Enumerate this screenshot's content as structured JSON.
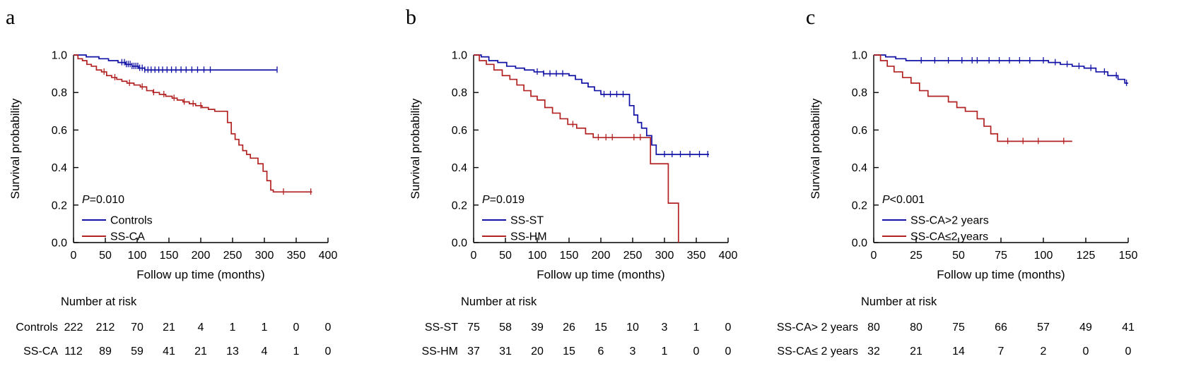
{
  "chart_data": [
    {
      "type": "line",
      "subtype": "kaplan-meier",
      "panel_label": "a",
      "p_label": "P=0.010",
      "xlabel": "Follow up time (months)",
      "ylabel": "Survival probability",
      "xlim": [
        0,
        400
      ],
      "xticks": [
        0,
        50,
        100,
        150,
        200,
        250,
        300,
        350,
        400
      ],
      "ylim": [
        0,
        1
      ],
      "yticks": [
        0.0,
        0.2,
        0.4,
        0.6,
        0.8,
        1.0
      ],
      "grid": false,
      "legend_position": "lower-left-inside",
      "series": [
        {
          "name": "Controls",
          "color": "#1111a5",
          "steps": [
            [
              0,
              1.0
            ],
            [
              20,
              0.99
            ],
            [
              40,
              0.98
            ],
            [
              55,
              0.97
            ],
            [
              70,
              0.96
            ],
            [
              82,
              0.95
            ],
            [
              92,
              0.94
            ],
            [
              102,
              0.93
            ],
            [
              112,
              0.92
            ],
            [
              320,
              0.92
            ]
          ],
          "censors": [
            76,
            80,
            83,
            86,
            89,
            92,
            95,
            98,
            101,
            104,
            108,
            112,
            117,
            122,
            128,
            134,
            140,
            147,
            154,
            161,
            169,
            177,
            186,
            195,
            205,
            215,
            320
          ]
        },
        {
          "name": "SS-CA",
          "color": "#b22222",
          "steps": [
            [
              0,
              1.0
            ],
            [
              7,
              0.98
            ],
            [
              14,
              0.97
            ],
            [
              21,
              0.95
            ],
            [
              28,
              0.94
            ],
            [
              36,
              0.92
            ],
            [
              44,
              0.91
            ],
            [
              52,
              0.89
            ],
            [
              60,
              0.88
            ],
            [
              68,
              0.87
            ],
            [
              76,
              0.86
            ],
            [
              84,
              0.85
            ],
            [
              95,
              0.84
            ],
            [
              105,
              0.83
            ],
            [
              115,
              0.81
            ],
            [
              125,
              0.8
            ],
            [
              135,
              0.79
            ],
            [
              145,
              0.78
            ],
            [
              155,
              0.77
            ],
            [
              163,
              0.76
            ],
            [
              172,
              0.75
            ],
            [
              182,
              0.74
            ],
            [
              192,
              0.73
            ],
            [
              202,
              0.72
            ],
            [
              212,
              0.71
            ],
            [
              222,
              0.7
            ],
            [
              242,
              0.64
            ],
            [
              248,
              0.58
            ],
            [
              254,
              0.55
            ],
            [
              260,
              0.52
            ],
            [
              266,
              0.49
            ],
            [
              272,
              0.47
            ],
            [
              278,
              0.45
            ],
            [
              290,
              0.42
            ],
            [
              298,
              0.38
            ],
            [
              304,
              0.33
            ],
            [
              310,
              0.28
            ],
            [
              314,
              0.27
            ],
            [
              375,
              0.27
            ]
          ],
          "censors": [
            48,
            65,
            88,
            108,
            126,
            142,
            158,
            174,
            188,
            200,
            330,
            373
          ]
        }
      ],
      "risk_table": {
        "title": "Number at risk",
        "rows": [
          {
            "name": "Controls",
            "values": [
              222,
              212,
              70,
              21,
              4,
              1,
              1,
              0,
              0
            ]
          },
          {
            "name": "SS-CA",
            "values": [
              112,
              89,
              59,
              41,
              21,
              13,
              4,
              1,
              0
            ]
          }
        ]
      }
    },
    {
      "type": "line",
      "subtype": "kaplan-meier",
      "panel_label": "b",
      "p_label": "P=0.019",
      "xlabel": "Follow up time (months)",
      "ylabel": "Survival probability",
      "xlim": [
        0,
        400
      ],
      "xticks": [
        0,
        50,
        100,
        150,
        200,
        250,
        300,
        350,
        400
      ],
      "ylim": [
        0,
        1
      ],
      "yticks": [
        0.0,
        0.2,
        0.4,
        0.6,
        0.8,
        1.0
      ],
      "grid": false,
      "legend_position": "lower-left-inside",
      "series": [
        {
          "name": "SS-ST",
          "color": "#1111a5",
          "steps": [
            [
              0,
              1.0
            ],
            [
              12,
              0.99
            ],
            [
              24,
              0.97
            ],
            [
              38,
              0.96
            ],
            [
              52,
              0.94
            ],
            [
              66,
              0.93
            ],
            [
              80,
              0.92
            ],
            [
              95,
              0.91
            ],
            [
              110,
              0.9
            ],
            [
              150,
              0.89
            ],
            [
              160,
              0.87
            ],
            [
              170,
              0.85
            ],
            [
              180,
              0.83
            ],
            [
              190,
              0.81
            ],
            [
              200,
              0.79
            ],
            [
              245,
              0.73
            ],
            [
              252,
              0.68
            ],
            [
              258,
              0.64
            ],
            [
              264,
              0.61
            ],
            [
              272,
              0.57
            ],
            [
              280,
              0.52
            ],
            [
              287,
              0.47
            ],
            [
              370,
              0.47
            ]
          ],
          "censors": [
            100,
            110,
            120,
            130,
            140,
            205,
            215,
            225,
            235,
            300,
            312,
            325,
            340,
            355,
            368
          ]
        },
        {
          "name": "SS-HM",
          "color": "#b22222",
          "steps": [
            [
              0,
              1.0
            ],
            [
              9,
              0.97
            ],
            [
              20,
              0.95
            ],
            [
              32,
              0.92
            ],
            [
              45,
              0.89
            ],
            [
              57,
              0.87
            ],
            [
              68,
              0.84
            ],
            [
              79,
              0.81
            ],
            [
              90,
              0.78
            ],
            [
              100,
              0.76
            ],
            [
              112,
              0.72
            ],
            [
              124,
              0.69
            ],
            [
              136,
              0.66
            ],
            [
              148,
              0.63
            ],
            [
              162,
              0.61
            ],
            [
              176,
              0.58
            ],
            [
              188,
              0.56
            ],
            [
              272,
              0.56
            ],
            [
              278,
              0.42
            ],
            [
              300,
              0.42
            ],
            [
              306,
              0.21
            ],
            [
              318,
              0.21
            ],
            [
              322,
              0.0
            ]
          ],
          "censors": [
            156,
            196,
            208,
            218,
            252,
            262
          ]
        }
      ],
      "risk_table": {
        "title": "Number at risk",
        "rows": [
          {
            "name": "SS-ST",
            "values": [
              75,
              58,
              39,
              26,
              15,
              10,
              3,
              1,
              0
            ]
          },
          {
            "name": "SS-HM",
            "values": [
              37,
              31,
              20,
              15,
              6,
              3,
              1,
              0,
              0
            ]
          }
        ]
      }
    },
    {
      "type": "line",
      "subtype": "kaplan-meier",
      "panel_label": "c",
      "p_label": "P<0.001",
      "xlabel": "Follow up time (months)",
      "ylabel": "Survival probability",
      "xlim": [
        0,
        150
      ],
      "xticks": [
        0,
        25,
        50,
        75,
        100,
        125,
        150
      ],
      "ylim": [
        0,
        1
      ],
      "yticks": [
        0.0,
        0.2,
        0.4,
        0.6,
        0.8,
        1.0
      ],
      "grid": false,
      "legend_position": "lower-left-inside",
      "series": [
        {
          "name": "SS-CA>2 years",
          "color": "#1111a5",
          "steps": [
            [
              0,
              1.0
            ],
            [
              7,
              0.99
            ],
            [
              13,
              0.98
            ],
            [
              19,
              0.97
            ],
            [
              97,
              0.97
            ],
            [
              103,
              0.96
            ],
            [
              110,
              0.95
            ],
            [
              117,
              0.94
            ],
            [
              124,
              0.93
            ],
            [
              131,
              0.91
            ],
            [
              138,
              0.89
            ],
            [
              144,
              0.87
            ],
            [
              148,
              0.85
            ],
            [
              150,
              0.85
            ]
          ],
          "censors": [
            28,
            36,
            44,
            52,
            58,
            61,
            68,
            74,
            80,
            86,
            92,
            100,
            107,
            114,
            121,
            128,
            136,
            143,
            149
          ]
        },
        {
          "name": "SS-CA≤2 years",
          "color": "#b22222",
          "steps": [
            [
              0,
              1.0
            ],
            [
              4,
              0.97
            ],
            [
              8,
              0.94
            ],
            [
              12,
              0.91
            ],
            [
              17,
              0.88
            ],
            [
              22,
              0.85
            ],
            [
              27,
              0.81
            ],
            [
              32,
              0.78
            ],
            [
              44,
              0.75
            ],
            [
              49,
              0.72
            ],
            [
              54,
              0.7
            ],
            [
              61,
              0.66
            ],
            [
              65,
              0.62
            ],
            [
              69,
              0.58
            ],
            [
              73,
              0.54
            ],
            [
              117,
              0.54
            ]
          ],
          "censors": [
            79,
            88,
            97,
            112
          ]
        }
      ],
      "risk_table": {
        "title": "Number at risk",
        "rows": [
          {
            "name": "SS-CA> 2 years",
            "values": [
              80,
              80,
              75,
              66,
              57,
              49,
              41
            ]
          },
          {
            "name": "SS-CA≤ 2 years",
            "values": [
              32,
              21,
              14,
              7,
              2,
              0,
              0
            ]
          }
        ]
      }
    }
  ]
}
